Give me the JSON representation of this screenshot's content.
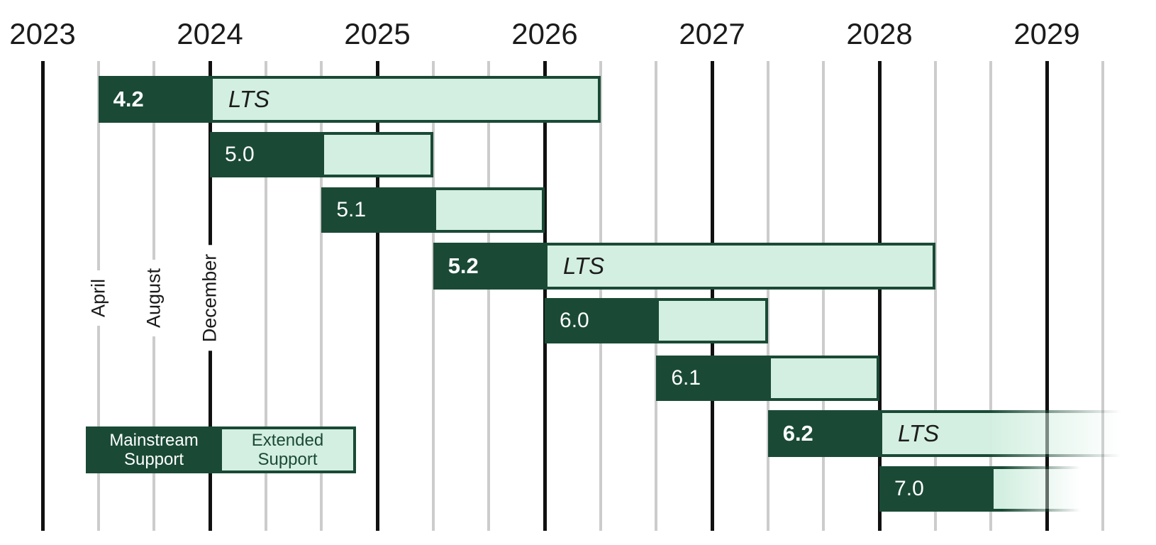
{
  "colors": {
    "mainstream_green": "#1A4A36",
    "extended_green": "#D3EFE1",
    "year_line": "#111111",
    "month_line": "#CCCCCC",
    "text_dark": "#1B1B1B",
    "text_light": "#FFFFFF"
  },
  "chart_data": {
    "type": "gantt",
    "x_axis": {
      "years": [
        "2023",
        "2024",
        "2025",
        "2026",
        "2027",
        "2028",
        "2029"
      ],
      "slots_per_year": 3,
      "month_gridlines": [
        {
          "label": "April",
          "t": 1
        },
        {
          "label": "August",
          "t": 2
        },
        {
          "label": "December",
          "t": 3
        }
      ]
    },
    "legend": {
      "mainstream_label": "Mainstream Support",
      "extended_label": "Extended Support"
    },
    "releases": [
      {
        "version": "4.2",
        "lts": true,
        "lts_label": "LTS",
        "start": "April 2023",
        "mainstream_until": "December 2023",
        "extended_until": "April 2026",
        "t_start": 1,
        "t_mainstream_end": 3,
        "t_extended_end": 10,
        "fade_out": false
      },
      {
        "version": "5.0",
        "lts": false,
        "lts_label": "",
        "start": "December 2023",
        "mainstream_until": "August 2024",
        "extended_until": "April 2025",
        "t_start": 3,
        "t_mainstream_end": 5,
        "t_extended_end": 7,
        "fade_out": false
      },
      {
        "version": "5.1",
        "lts": false,
        "lts_label": "",
        "start": "August 2024",
        "mainstream_until": "April 2025",
        "extended_until": "December 2025",
        "t_start": 5,
        "t_mainstream_end": 7,
        "t_extended_end": 9,
        "fade_out": false
      },
      {
        "version": "5.2",
        "lts": true,
        "lts_label": "LTS",
        "start": "April 2025",
        "mainstream_until": "December 2025",
        "extended_until": "April 2028",
        "t_start": 7,
        "t_mainstream_end": 9,
        "t_extended_end": 16,
        "fade_out": false
      },
      {
        "version": "6.0",
        "lts": false,
        "lts_label": "",
        "start": "December 2025",
        "mainstream_until": "August 2026",
        "extended_until": "April 2027",
        "t_start": 9,
        "t_mainstream_end": 11,
        "t_extended_end": 13,
        "fade_out": false
      },
      {
        "version": "6.1",
        "lts": false,
        "lts_label": "",
        "start": "August 2026",
        "mainstream_until": "April 2027",
        "extended_until": "December 2027",
        "t_start": 11,
        "t_mainstream_end": 13,
        "t_extended_end": 15,
        "fade_out": false
      },
      {
        "version": "6.2",
        "lts": true,
        "lts_label": "LTS",
        "start": "April 2027",
        "mainstream_until": "December 2027",
        "extended_until": null,
        "t_start": 13,
        "t_mainstream_end": 15,
        "t_extended_end": 19.8,
        "fade_out": true
      },
      {
        "version": "7.0",
        "lts": false,
        "lts_label": "",
        "start": "December 2027",
        "mainstream_until": "August 2028",
        "extended_until": null,
        "t_start": 15,
        "t_mainstream_end": 17,
        "t_extended_end": 19.0,
        "fade_out": true
      }
    ]
  }
}
